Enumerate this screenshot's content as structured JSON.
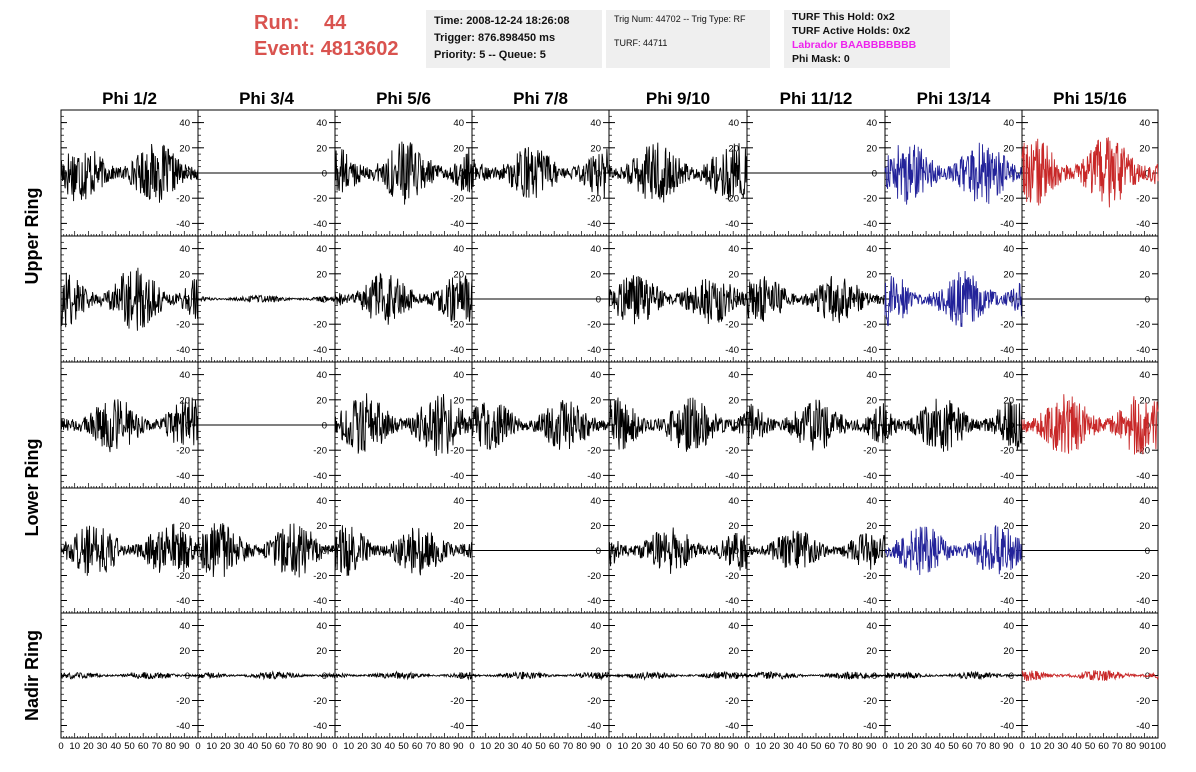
{
  "header": {
    "run_label": "Run:",
    "run_value": "44",
    "event_label": "Event:",
    "event_value": "4813602",
    "box1": [
      "Time: 2008-12-24 18:26:08",
      "Trigger: 876.898450 ms",
      "Priority: 5 -- Queue: 5"
    ],
    "box2_line1": "Trig Num: 44702 -- Trig Type: RF",
    "box2_line2": "TURF: 44711",
    "box3": [
      "TURF This Hold: 0x2",
      "TURF Active Holds: 0x2"
    ],
    "labrador": "Labrador BAABBBBBBB",
    "phi_mask": "Phi Mask: 0"
  },
  "colors": {
    "run_text": "#d9534f",
    "labrador_text": "#ee22ee",
    "trace_default": "#000000",
    "trace_blue": "#23239a",
    "trace_red": "#c82828"
  },
  "chart_data": {
    "type": "line",
    "columns": [
      "Phi 1/2",
      "Phi 3/4",
      "Phi 5/6",
      "Phi 7/8",
      "Phi 9/10",
      "Phi 11/12",
      "Phi 13/14",
      "Phi 15/16"
    ],
    "rows": [
      "Upper Ring",
      "Upper Ring",
      "Lower Ring",
      "Lower Ring",
      "Nadir Ring"
    ],
    "row_labels": [
      {
        "text": "Upper Ring",
        "spans_rows": [
          0,
          1
        ]
      },
      {
        "text": "Lower Ring",
        "spans_rows": [
          2,
          3
        ]
      },
      {
        "text": "Nadir Ring",
        "spans_rows": [
          4,
          4
        ]
      }
    ],
    "xlim": [
      0,
      100
    ],
    "ylim": [
      -50,
      50
    ],
    "y_ticks": [
      -40,
      -20,
      0,
      20,
      40
    ],
    "x_ticks": [
      0,
      10,
      20,
      30,
      40,
      50,
      60,
      70,
      80,
      90,
      100
    ],
    "x_tick_labels": [
      "0",
      "10",
      "20",
      "30",
      "40",
      "50",
      "60",
      "70",
      "80",
      "90",
      "100"
    ],
    "grid": false,
    "panels": [
      {
        "row": 0,
        "col": 0,
        "color": "black",
        "amp": 16
      },
      {
        "row": 0,
        "col": 1,
        "color": "black",
        "amp": 0
      },
      {
        "row": 0,
        "col": 2,
        "color": "black",
        "amp": 17
      },
      {
        "row": 0,
        "col": 3,
        "color": "black",
        "amp": 14
      },
      {
        "row": 0,
        "col": 4,
        "color": "black",
        "amp": 17
      },
      {
        "row": 0,
        "col": 5,
        "color": "black",
        "amp": 0
      },
      {
        "row": 0,
        "col": 6,
        "color": "blue",
        "amp": 17
      },
      {
        "row": 0,
        "col": 7,
        "color": "red",
        "amp": 20
      },
      {
        "row": 1,
        "col": 0,
        "color": "black",
        "amp": 17
      },
      {
        "row": 1,
        "col": 1,
        "color": "black",
        "amp": 2
      },
      {
        "row": 1,
        "col": 2,
        "color": "black",
        "amp": 14
      },
      {
        "row": 1,
        "col": 3,
        "color": "black",
        "amp": 0
      },
      {
        "row": 1,
        "col": 4,
        "color": "black",
        "amp": 14
      },
      {
        "row": 1,
        "col": 5,
        "color": "black",
        "amp": 13
      },
      {
        "row": 1,
        "col": 6,
        "color": "blue",
        "amp": 15
      },
      {
        "row": 1,
        "col": 7,
        "color": "black",
        "amp": 0
      },
      {
        "row": 2,
        "col": 0,
        "color": "black",
        "amp": 15
      },
      {
        "row": 2,
        "col": 1,
        "color": "black",
        "amp": 0
      },
      {
        "row": 2,
        "col": 2,
        "color": "black",
        "amp": 17
      },
      {
        "row": 2,
        "col": 3,
        "color": "black",
        "amp": 14
      },
      {
        "row": 2,
        "col": 4,
        "color": "black",
        "amp": 15
      },
      {
        "row": 2,
        "col": 5,
        "color": "black",
        "amp": 14
      },
      {
        "row": 2,
        "col": 6,
        "color": "black",
        "amp": 15
      },
      {
        "row": 2,
        "col": 7,
        "color": "red",
        "amp": 17
      },
      {
        "row": 3,
        "col": 0,
        "color": "black",
        "amp": 15
      },
      {
        "row": 3,
        "col": 1,
        "color": "black",
        "amp": 15
      },
      {
        "row": 3,
        "col": 2,
        "color": "black",
        "amp": 14
      },
      {
        "row": 3,
        "col": 3,
        "color": "black",
        "amp": 0
      },
      {
        "row": 3,
        "col": 4,
        "color": "black",
        "amp": 13
      },
      {
        "row": 3,
        "col": 5,
        "color": "black",
        "amp": 11
      },
      {
        "row": 3,
        "col": 6,
        "color": "blue",
        "amp": 14
      },
      {
        "row": 3,
        "col": 7,
        "color": "black",
        "amp": 0
      },
      {
        "row": 4,
        "col": 0,
        "color": "black",
        "amp": 2
      },
      {
        "row": 4,
        "col": 1,
        "color": "black",
        "amp": 2
      },
      {
        "row": 4,
        "col": 2,
        "color": "black",
        "amp": 2
      },
      {
        "row": 4,
        "col": 3,
        "color": "black",
        "amp": 2
      },
      {
        "row": 4,
        "col": 4,
        "color": "black",
        "amp": 2
      },
      {
        "row": 4,
        "col": 5,
        "color": "black",
        "amp": 2
      },
      {
        "row": 4,
        "col": 6,
        "color": "black",
        "amp": 2
      },
      {
        "row": 4,
        "col": 7,
        "color": "red",
        "amp": 3
      }
    ]
  }
}
